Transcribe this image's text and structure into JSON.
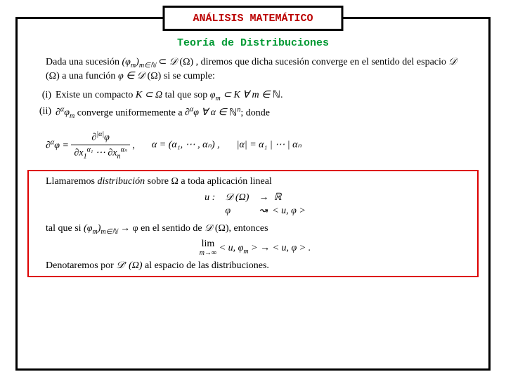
{
  "colors": {
    "title": "#bb0000",
    "subtitle": "#009933",
    "frame": "#000000",
    "redbox": "#dd0000",
    "text": "#000000",
    "background": "#ffffff"
  },
  "typography": {
    "title_font": "Courier New",
    "body_font": "Times New Roman",
    "title_fontsize": 15,
    "body_fontsize": 14
  },
  "title": "ANÁLISIS MATEMÁTICO",
  "subtitle": "Teoría de Distribuciones",
  "para1": {
    "t1": "Dada una sucesión ",
    "seq": "(φ",
    "seq_sub": "m",
    "seq_close": ")",
    "seq_idx_sub": "m∈ℕ",
    "t2": " ⊂ ",
    "space1": "𝒟",
    "space1_arg": " (Ω) ",
    "t3": ", diremos que dicha sucesión converge en el sentido del espacio ",
    "space2": "𝒟",
    "space2_arg": " (Ω) ",
    "t4": " a una función ",
    "phi": "φ ∈ ",
    "space3": "𝒟",
    "space3_arg": " (Ω) ",
    "t5": "si se cumple:"
  },
  "item1": {
    "num": "(i)",
    "t1": "Existe un compacto ",
    "K": "K ⊂ Ω ",
    "t2": "tal que sop ",
    "phim": "φ",
    "phim_sub": "m",
    "t3": " ⊂ K ∀ m ∈ ",
    "nat": "ℕ",
    "dot": "."
  },
  "item2": {
    "num": "(ii)",
    "d1": "∂",
    "sup1": "α",
    "phim": "φ",
    "phim_sub": "m",
    "t1": " converge uniformemente a ",
    "d2": "∂",
    "sup2": "α",
    "phi": "φ ∀ α ∈ ",
    "nat": "ℕ",
    "natn": "n",
    "t2": "; donde"
  },
  "formula": {
    "lhs": "∂",
    "lhs_sup": "α",
    "lhs_phi": "φ =",
    "num": "∂",
    "num_sup": "|α|",
    "num_phi": "φ",
    "den_a": "∂x",
    "den_sub1": "1",
    "den_sup1": "α₁",
    "den_dots": " ⋯ ",
    "den_subn": "n",
    "den_supn": "αₙ",
    "comma": ",",
    "alpha_eq": "α = (α₁, ⋯ , αₙ) ,",
    "mod_lhs": "|α| = α₁ | ⋯ | αₙ"
  },
  "box": {
    "p1_a": "Llamaremos ",
    "p1_b": "distribución",
    "p1_c": " sobre Ω a toda aplicación lineal",
    "map_u": "u :",
    "map_dom": "𝒟 (Ω)",
    "map_arr1": "→",
    "map_rng": "ℝ",
    "map_phi": "φ",
    "map_arr2": "↝",
    "map_out": "< u, φ >",
    "p2_a": "tal que si ",
    "p2_seq": "(φ",
    "p2_seq_sub": "m",
    "p2_seq_close": ")",
    "p2_idx": "m∈ℕ",
    "p2_b": " → φ en el sentido de ",
    "p2_space": "𝒟 (Ω)",
    "p2_c": ", entonces",
    "lim_top": "lim",
    "lim_bot": "m→∞",
    "lim_body": " < u, φ",
    "lim_sub": "m",
    "lim_rest": " > → < u, φ > .",
    "p3_a": "Denotaremos por ",
    "p3_space": "𝒟′ (Ω)",
    "p3_b": " al espacio de las distribuciones."
  }
}
